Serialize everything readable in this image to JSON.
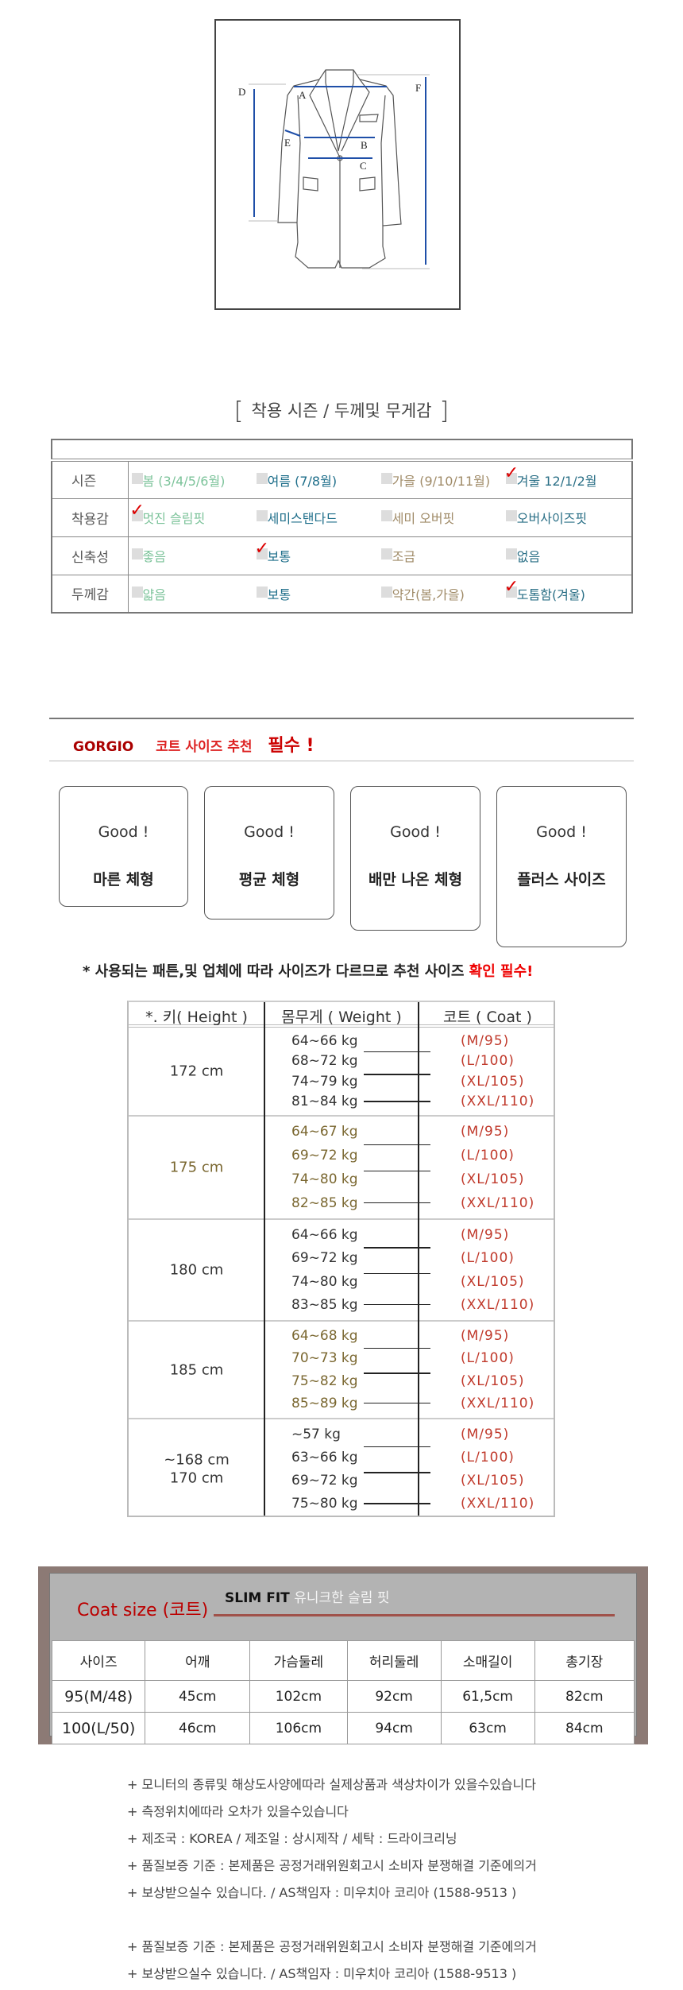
{
  "diagram": {
    "labels": [
      "A",
      "B",
      "C",
      "D",
      "E",
      "F"
    ],
    "line_color": "#1f4fa8"
  },
  "season": {
    "title": "착용 시즌 / 두께및 무게감",
    "bracket_open": "[",
    "bracket_close": "]",
    "rows": [
      {
        "label": "시즌",
        "options": [
          {
            "text": "봄 (3/4/5/6월)",
            "checked": false,
            "color": "#7cc39a"
          },
          {
            "text": "여름 (7/8월)",
            "checked": false,
            "color": "#1e6e8a"
          },
          {
            "text": "가을 (9/10/11월)",
            "checked": false,
            "color": "#a08b68"
          },
          {
            "text": "겨울 12/1/2월",
            "checked": true,
            "color": "#2a6f86"
          }
        ]
      },
      {
        "label": "착용감",
        "options": [
          {
            "text": "멋진 슬림핏",
            "checked": true,
            "color": "#7cc39a"
          },
          {
            "text": "세미스탠다드",
            "checked": false,
            "color": "#1e6e8a"
          },
          {
            "text": "세미 오버핏",
            "checked": false,
            "color": "#a08b68"
          },
          {
            "text": "오버사이즈핏",
            "checked": false,
            "color": "#2a6f86"
          }
        ]
      },
      {
        "label": "신축성",
        "options": [
          {
            "text": "좋음",
            "checked": false,
            "color": "#7cc39a"
          },
          {
            "text": "보통",
            "checked": true,
            "color": "#1e6e8a"
          },
          {
            "text": "조금",
            "checked": false,
            "color": "#a08b68"
          },
          {
            "text": "없음",
            "checked": false,
            "color": "#2a6f86"
          }
        ]
      },
      {
        "label": "두께감",
        "options": [
          {
            "text": "얇음",
            "checked": false,
            "color": "#7cc39a"
          },
          {
            "text": "보통",
            "checked": false,
            "color": "#1e6e8a"
          },
          {
            "text": "약간(봄,가을)",
            "checked": false,
            "color": "#a08b68"
          },
          {
            "text": "도톰함(겨울)",
            "checked": true,
            "color": "#2a6f86"
          }
        ]
      }
    ],
    "check_mark": "✓"
  },
  "recommend": {
    "brand": "GORGIO",
    "title": "코트 사이즈 추천",
    "required": "필수 !",
    "cards": [
      {
        "good": "Good !",
        "type": "마른 체형"
      },
      {
        "good": "Good !",
        "type": "평균 체형"
      },
      {
        "good": "Good !",
        "type": "배만 나온 체형"
      },
      {
        "good": "Good !",
        "type": "플러스 사이즈"
      }
    ],
    "note": "* 사용되는 패튼,및 업체에 따라  사이즈가 다르므로  추천 사이즈 ",
    "note_emphasis": "확인 필수!"
  },
  "size_chart": {
    "headers": {
      "height": "*. 키( Height )",
      "weight": "몸무게 ( Weight )",
      "coat": "코트 ( Coat )"
    },
    "header_colors": {
      "height": "#2bbfae",
      "weight": "#2bbfae",
      "coat": "#c0392b"
    },
    "groups": [
      {
        "height": "172 cm",
        "color": "#333333",
        "weights": [
          "64~66 kg",
          "68~72 kg",
          "74~79 kg",
          "81~84 kg"
        ],
        "coats": [
          "(M/95)",
          "(L/100)",
          "(XL/105)",
          "(XXL/110)"
        ]
      },
      {
        "height": "175 cm",
        "color": "#7a6730",
        "weights": [
          "64~67 kg",
          "69~72 kg",
          "74~80 kg",
          "82~85 kg"
        ],
        "coats": [
          "(M/95)",
          "(L/100)",
          "(XL/105)",
          "(XXL/110)"
        ]
      },
      {
        "height": "180 cm",
        "color": "#333333",
        "weights": [
          "64~66 kg",
          "69~72 kg",
          "74~80 kg",
          "83~85 kg"
        ],
        "coats": [
          "(M/95)",
          "(L/100)",
          "(XL/105)",
          "(XXL/110)"
        ]
      },
      {
        "height": "185 cm",
        "height_color": "#333333",
        "color": "#7a6730",
        "weights": [
          "64~68 kg",
          "70~73 kg",
          "75~82 kg",
          "85~89 kg"
        ],
        "coats": [
          "(M/95)",
          "(L/100)",
          "(XL/105)",
          "(XXL/110)"
        ]
      },
      {
        "height": "~168 cm",
        "height2": "170 cm",
        "color": "#333333",
        "weights": [
          "~57 kg",
          "63~66 kg",
          "69~72 kg",
          "75~80 kg"
        ],
        "coats": [
          "(M/95)",
          "(L/100)",
          "(XL/105)",
          "(XXL/110)"
        ]
      }
    ]
  },
  "coat_size": {
    "title": "Coat size (코트)",
    "fit": "SLIM FIT",
    "fit_desc": "유니크한  슬림 핏",
    "columns": [
      "사이즈",
      "어깨",
      "가슴둘레",
      "허리둘레",
      "소매길이",
      "총기장"
    ],
    "rows": [
      [
        "95(M/48)",
        "45cm",
        "102cm",
        "92cm",
        "61,5cm",
        "82cm"
      ],
      [
        "100(L/50)",
        "46cm",
        "106cm",
        "94cm",
        "63cm",
        "84cm"
      ]
    ]
  },
  "notes": [
    "+ 모니터의 종류및 해상도사양에따라 실제상품과 색상차이가 있을수있습니다",
    "+ 측정위치에따라 오차가 있을수있습니다",
    "+ 제조국 : KOREA /  제조일 :   상시제작    / 세탁 : 드라이크리닝",
    "+ 품질보증 기준 : 본제품은 공정거래위원회고시 소비자 분쟁해결 기준에의거",
    "+ 보상받으실수 있습니다. / AS책임자 : 미우치아 코리아  (1588-9513 )",
    "",
    "+ 품질보증 기준 : 본제품은 공정거래위원회고시 소비자 분쟁해결 기준에의거",
    "+ 보상받으실수 있습니다. / AS책임자 : 미우치아 코리아  (1588-9513 )"
  ]
}
